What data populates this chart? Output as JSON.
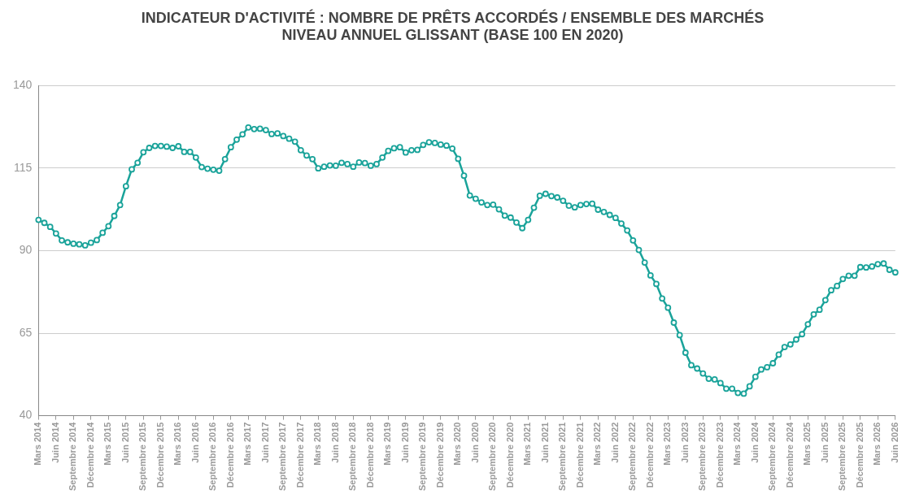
{
  "chart_data": {
    "type": "line",
    "title": "INDICATEUR D'ACTIVITÉ : NOMBRE DE PRÊTS ACCORDÉS / ENSEMBLE DES MARCHÉS\nNIVEAU ANNUEL GLISSANT (BASE 100 EN 2020)",
    "categories": [
      "Mars 2014",
      null,
      null,
      "Juin 2014",
      null,
      null,
      "Septembre 2014",
      null,
      null,
      "Décembre 2014",
      null,
      null,
      "Mars 2015",
      null,
      null,
      "Juin 2015",
      null,
      null,
      "Septembre 2015",
      null,
      null,
      "Décembre 2015",
      null,
      null,
      "Mars 2016",
      null,
      null,
      "Juin 2016",
      null,
      null,
      "Septembre 2016",
      null,
      null,
      "Décembre 2016",
      null,
      null,
      "Mars 2017",
      null,
      null,
      "Juin 2017",
      null,
      null,
      "Septembre 2017",
      null,
      null,
      "Décembre 2017",
      null,
      null,
      "Mars 2018",
      null,
      null,
      "Juin 2018",
      null,
      null,
      "Septembre 2018",
      null,
      null,
      "Décembre 2018",
      null,
      null,
      "Mars 2019",
      null,
      null,
      "Juin 2019",
      null,
      null,
      "Septembre 2019",
      null,
      null,
      "Décembre 2019",
      null,
      null,
      "Mars 2020",
      null,
      null,
      "Juin 2020",
      null,
      null,
      "Septembre 2020",
      null,
      null,
      "Décembre 2020",
      null,
      null,
      "Mars 2021",
      null,
      null,
      "Juin 2021",
      null,
      null,
      "Septembre 2021",
      null,
      null,
      "Décembre 2021",
      null,
      null,
      "Mars 2022",
      null,
      null,
      "Juin 2022",
      null,
      null,
      "Septembre 2022",
      null,
      null,
      "Décembre 2022",
      null,
      null,
      "Mars 2023",
      null,
      null,
      "Juin 2023",
      null,
      null,
      "Septembre 2023",
      null,
      null,
      "Décembre 2023",
      null,
      null,
      "Mars 2024",
      null,
      null,
      "Juin 2024",
      null,
      null,
      "Septembre 2024",
      null,
      null,
      "Décembre 2024",
      null,
      null,
      "Mars 2025",
      null,
      null,
      "Juin 2025",
      null,
      null,
      "Septembre 2025",
      null,
      null,
      "Décembre 2025",
      null,
      null,
      "Mars 2026",
      null,
      null,
      "Juin 2026"
    ],
    "series": [
      {
        "color": "#1aa39a",
        "values": [
          99.3,
          98.4,
          97.2,
          95.2,
          93.1,
          92.5,
          92.1,
          91.9,
          91.6,
          92.4,
          93.2,
          95.4,
          97.4,
          100.5,
          103.8,
          109.5,
          114.6,
          116.6,
          119.8,
          121.1,
          121.7,
          121.7,
          121.5,
          121.1,
          121.6,
          119.9,
          119.9,
          118.2,
          115.3,
          114.8,
          114.5,
          114.2,
          117.7,
          121.3,
          123.6,
          125.2,
          127.3,
          126.8,
          126.9,
          126.5,
          125.3,
          125.5,
          124.7,
          123.9,
          123.0,
          120.4,
          118.8,
          117.7,
          114.9,
          115.4,
          115.8,
          115.7,
          116.6,
          116.2,
          115.4,
          116.7,
          116.5,
          115.7,
          116.2,
          118.2,
          120.2,
          121.0,
          121.3,
          119.7,
          120.4,
          120.5,
          122.0,
          122.8,
          122.6,
          122.1,
          121.8,
          120.9,
          117.8,
          112.7,
          106.7,
          105.7,
          104.6,
          103.8,
          103.9,
          102.5,
          100.6,
          100.0,
          98.5,
          96.8,
          99.3,
          103.0,
          106.6,
          107.2,
          106.5,
          106.1,
          105.1,
          103.6,
          103.1,
          103.8,
          104.1,
          104.2,
          102.4,
          101.7,
          100.8,
          99.9,
          98.2,
          96.1,
          93.1,
          90.2,
          86.4,
          82.5,
          79.9,
          75.5,
          72.7,
          68.2,
          64.4,
          59.1,
          55.3,
          54.3,
          52.8,
          51.2,
          51.0,
          49.9,
          48.2,
          48.2,
          46.9,
          46.7,
          48.9,
          51.8,
          54.0,
          54.7,
          55.9,
          58.5,
          60.8,
          61.6,
          63.1,
          64.7,
          67.7,
          70.7,
          72.1,
          75.0,
          78.0,
          79.3,
          81.4,
          82.4,
          82.4,
          85.0,
          84.9,
          85.2,
          85.9,
          86.1,
          84.2,
          83.4
        ]
      }
    ],
    "ylim": [
      40,
      140
    ],
    "yticks": [
      40,
      65,
      90,
      115,
      140
    ],
    "grid": "y",
    "legend": false,
    "marker": "circle",
    "line_style": "solid"
  }
}
